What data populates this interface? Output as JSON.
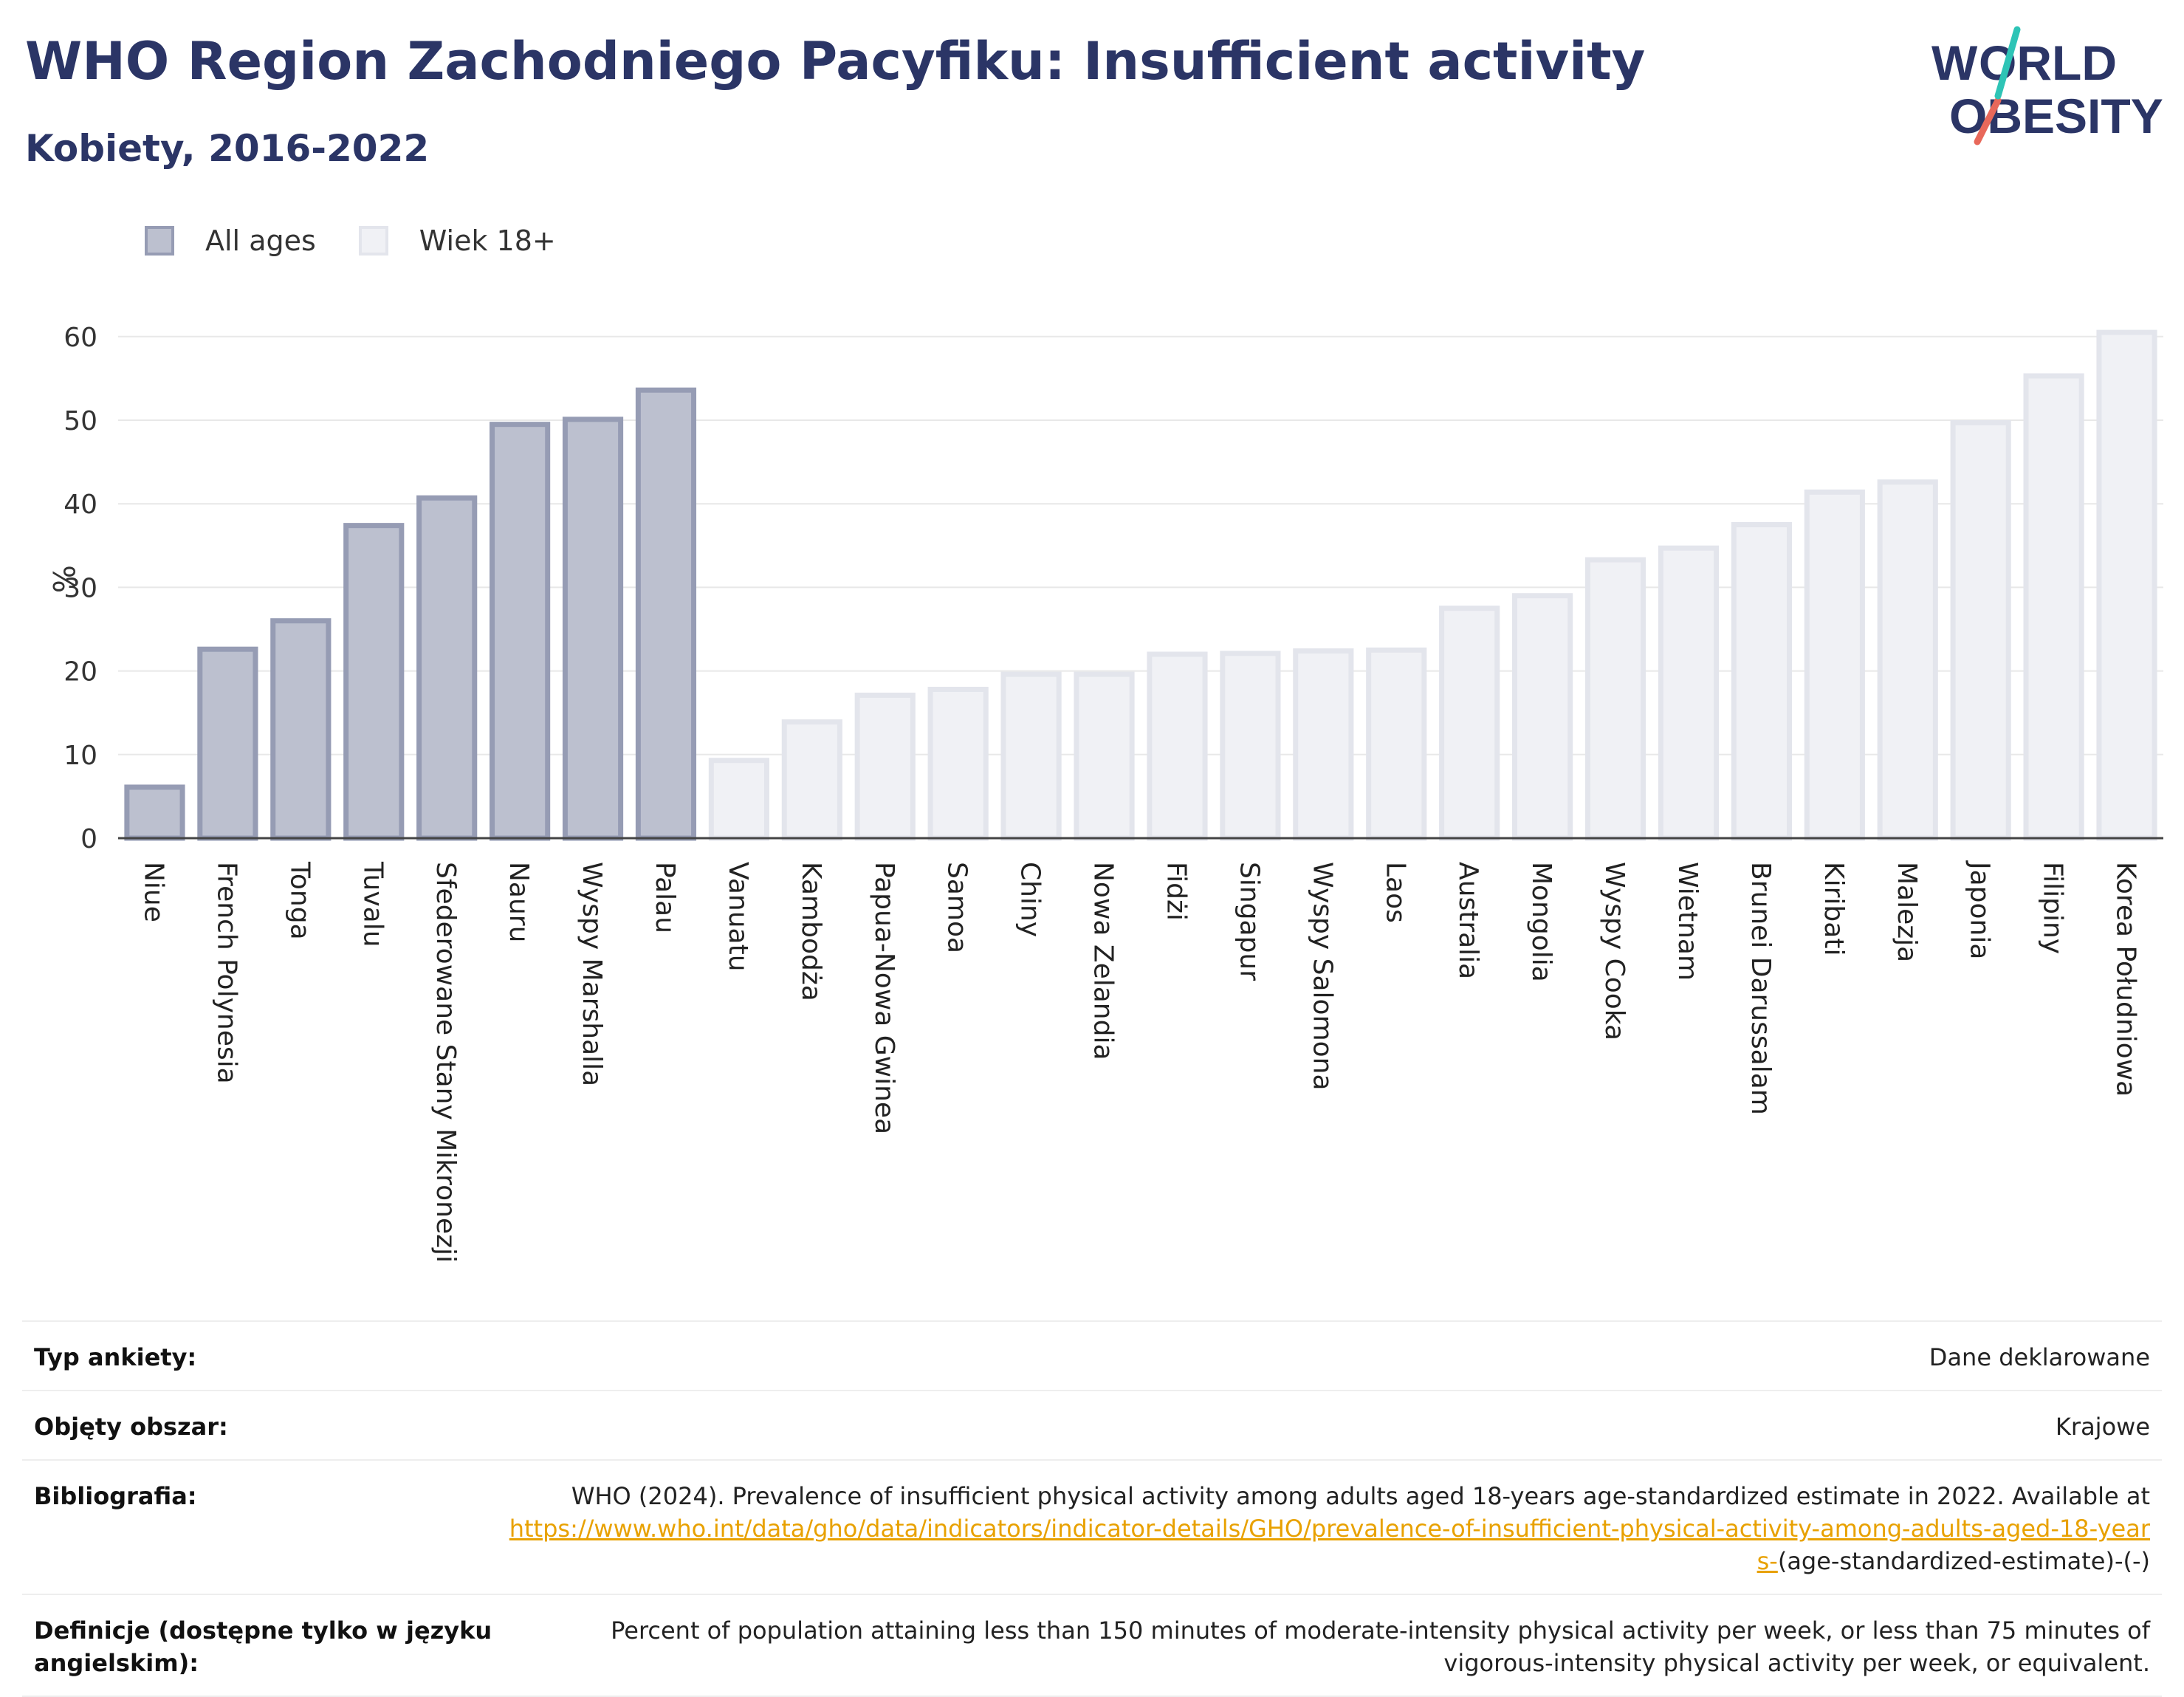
{
  "header": {
    "title": "WHO Region Zachodniego Pacyfiku: Insufficient activity",
    "subtitle": "Kobiety, 2016-2022"
  },
  "logo": {
    "line1": "WORLD",
    "line2": "OBESITY",
    "colors": {
      "text": "#2b3566",
      "slash_teal": "#2ec4b6",
      "slash_coral": "#e8685a"
    }
  },
  "legend": {
    "items": [
      {
        "label": "All ages",
        "color": "#bcc0cf"
      },
      {
        "label": "Wiek 18+",
        "color": "#f0f1f5"
      }
    ]
  },
  "chart_data": {
    "type": "bar",
    "ylabel": "%",
    "xlabel": "",
    "ylim": [
      0,
      62
    ],
    "yticks": [
      0,
      10,
      20,
      30,
      40,
      50,
      60
    ],
    "grid": true,
    "legend_position": "top-left",
    "categories": [
      "Niue",
      "French Polynesia",
      "Tonga",
      "Tuvalu",
      "Sfederowane Stany Mikronezji",
      "Nauru",
      "Wyspy Marshalla",
      "Palau",
      "Vanuatu",
      "Kambodża",
      "Papua-Nowa Gwinea",
      "Samoa",
      "Chiny",
      "Nowa Zelandia",
      "Fidżi",
      "Singapur",
      "Wyspy Salomona",
      "Laos",
      "Australia",
      "Mongolia",
      "Wyspy Cooka",
      "Wietnam",
      "Brunei Darussalam",
      "Kiribati",
      "Malezja",
      "Japonia",
      "Filipiny",
      "Korea Południowa"
    ],
    "values": [
      6.1,
      22.6,
      26.0,
      37.4,
      40.7,
      49.5,
      50.1,
      53.6,
      9.3,
      13.9,
      17.1,
      17.8,
      19.6,
      19.6,
      22.0,
      22.1,
      22.4,
      22.5,
      27.5,
      29.0,
      33.3,
      34.7,
      37.5,
      41.4,
      42.6,
      49.7,
      55.3,
      60.5
    ],
    "series_group": [
      "All ages",
      "All ages",
      "All ages",
      "All ages",
      "All ages",
      "All ages",
      "All ages",
      "All ages",
      "Wiek 18+",
      "Wiek 18+",
      "Wiek 18+",
      "Wiek 18+",
      "Wiek 18+",
      "Wiek 18+",
      "Wiek 18+",
      "Wiek 18+",
      "Wiek 18+",
      "Wiek 18+",
      "Wiek 18+",
      "Wiek 18+",
      "Wiek 18+",
      "Wiek 18+",
      "Wiek 18+",
      "Wiek 18+",
      "Wiek 18+",
      "Wiek 18+",
      "Wiek 18+",
      "Wiek 18+"
    ],
    "colors": {
      "All ages": {
        "fill": "#bcc0cf",
        "stroke": "#969cb4"
      },
      "Wiek 18+": {
        "fill": "#f0f1f5",
        "stroke": "#e3e5ec"
      }
    }
  },
  "meta": {
    "survey_type_label": "Typ ankiety:",
    "survey_type_value": "Dane deklarowane",
    "coverage_label": "Objęty obszar:",
    "coverage_value": "Krajowe",
    "bibliography_label": "Bibliografia:",
    "bibliography_text": "WHO (2024). Prevalence of insufficient physical activity among adults aged 18-years age-standardized estimate in 2022. Available at",
    "bibliography_link": "https://www.who.int/data/gho/data/indicators/indicator-details/GHO/prevalence-of-insufficient-physical-activity-among-adults-aged-18-years-",
    "bibliography_suffix": "(age-standardized-estimate)-(-)",
    "definitions_label": "Definicje (dostępne tylko w języku angielskim):",
    "definitions_value": "Percent of population attaining less than 150 minutes of moderate-intensity physical activity per week, or less than 75 minutes of vigorous-intensity physical activity per week, or equivalent."
  }
}
